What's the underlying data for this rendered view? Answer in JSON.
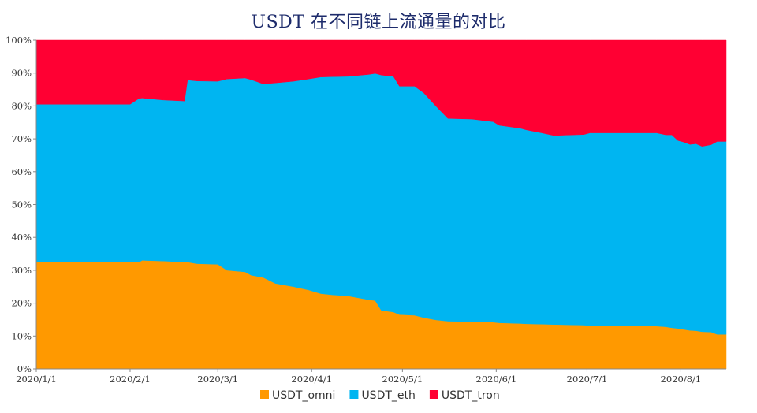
{
  "chart_data": {
    "type": "area",
    "stacked": true,
    "percent": true,
    "title": "USDT 在不同链上流通量的对比",
    "xlabel": "",
    "ylabel": "",
    "ylim": [
      0,
      100
    ],
    "yticks": [
      "0%",
      "10%",
      "20%",
      "30%",
      "40%",
      "50%",
      "60%",
      "70%",
      "80%",
      "90%",
      "100%"
    ],
    "xlim": [
      "2020-01-01",
      "2020-08-16"
    ],
    "xticks": [
      {
        "date": "2020-01-01",
        "label": "2020/1/1"
      },
      {
        "date": "2020-02-01",
        "label": "2020/2/1"
      },
      {
        "date": "2020-03-01",
        "label": "2020/3/1"
      },
      {
        "date": "2020-04-01",
        "label": "2020/4/1"
      },
      {
        "date": "2020-05-01",
        "label": "2020/5/1"
      },
      {
        "date": "2020-06-01",
        "label": "2020/6/1"
      },
      {
        "date": "2020-07-01",
        "label": "2020/7/1"
      },
      {
        "date": "2020-08-01",
        "label": "2020/8/1"
      }
    ],
    "legend": "bottom",
    "grid": false,
    "x": [
      "2020-01-01",
      "2020-02-01",
      "2020-02-04",
      "2020-02-05",
      "2020-02-12",
      "2020-02-19",
      "2020-02-20",
      "2020-02-23",
      "2020-03-01",
      "2020-03-04",
      "2020-03-10",
      "2020-03-12",
      "2020-03-16",
      "2020-03-20",
      "2020-03-26",
      "2020-03-31",
      "2020-04-04",
      "2020-04-08",
      "2020-04-13",
      "2020-04-20",
      "2020-04-22",
      "2020-04-24",
      "2020-04-28",
      "2020-04-30",
      "2020-05-05",
      "2020-05-08",
      "2020-05-12",
      "2020-05-16",
      "2020-05-24",
      "2020-05-31",
      "2020-06-02",
      "2020-06-09",
      "2020-06-11",
      "2020-06-16",
      "2020-06-20",
      "2020-06-30",
      "2020-07-02",
      "2020-07-22",
      "2020-07-24",
      "2020-07-27",
      "2020-07-29",
      "2020-07-31",
      "2020-08-02",
      "2020-08-04",
      "2020-08-06",
      "2020-08-08",
      "2020-08-11",
      "2020-08-13",
      "2020-08-16"
    ],
    "series": [
      {
        "name": "USDT_omni",
        "color": "#ff9900",
        "values": [
          32.5,
          32.5,
          32.5,
          33.0,
          32.8,
          32.5,
          32.5,
          32.0,
          31.8,
          30.0,
          29.5,
          28.5,
          27.8,
          26.0,
          25.0,
          24.0,
          22.9,
          22.5,
          22.2,
          21.0,
          20.8,
          17.8,
          17.3,
          16.5,
          16.3,
          15.6,
          14.9,
          14.5,
          14.4,
          14.2,
          14.0,
          13.8,
          13.7,
          13.6,
          13.5,
          13.3,
          13.2,
          13.1,
          13.0,
          12.8,
          12.5,
          12.3,
          12.0,
          11.7,
          11.6,
          11.3,
          11.2,
          10.5,
          10.5
        ]
      },
      {
        "name": "USDT_eth",
        "color": "#00b5f1",
        "values": [
          48.0,
          48.0,
          49.8,
          49.4,
          49.0,
          49.0,
          55.4,
          55.6,
          55.7,
          58.2,
          59.0,
          59.5,
          58.9,
          61.0,
          62.5,
          64.2,
          65.9,
          66.4,
          66.8,
          68.6,
          69.1,
          71.6,
          71.7,
          69.5,
          69.7,
          68.4,
          65.1,
          61.7,
          61.6,
          61.0,
          60.1,
          59.4,
          59.0,
          58.2,
          57.5,
          58.0,
          58.6,
          58.7,
          58.8,
          58.4,
          58.7,
          57.2,
          57.0,
          56.6,
          56.9,
          56.4,
          57.0,
          58.7,
          58.7
        ]
      },
      {
        "name": "USDT_tron",
        "color": "#ff0033",
        "values": [
          19.5,
          19.5,
          17.7,
          17.6,
          18.2,
          18.5,
          12.1,
          12.4,
          12.5,
          11.8,
          11.5,
          12.0,
          13.3,
          13.0,
          12.5,
          11.8,
          11.2,
          11.1,
          11.0,
          10.4,
          10.1,
          10.6,
          11.0,
          14.0,
          14.0,
          16.0,
          20.0,
          23.8,
          24.0,
          24.8,
          25.9,
          26.8,
          27.3,
          28.2,
          29.0,
          28.7,
          28.2,
          28.2,
          28.2,
          28.8,
          28.8,
          30.5,
          31.0,
          31.7,
          31.5,
          32.3,
          31.8,
          30.8,
          30.8
        ]
      }
    ]
  }
}
